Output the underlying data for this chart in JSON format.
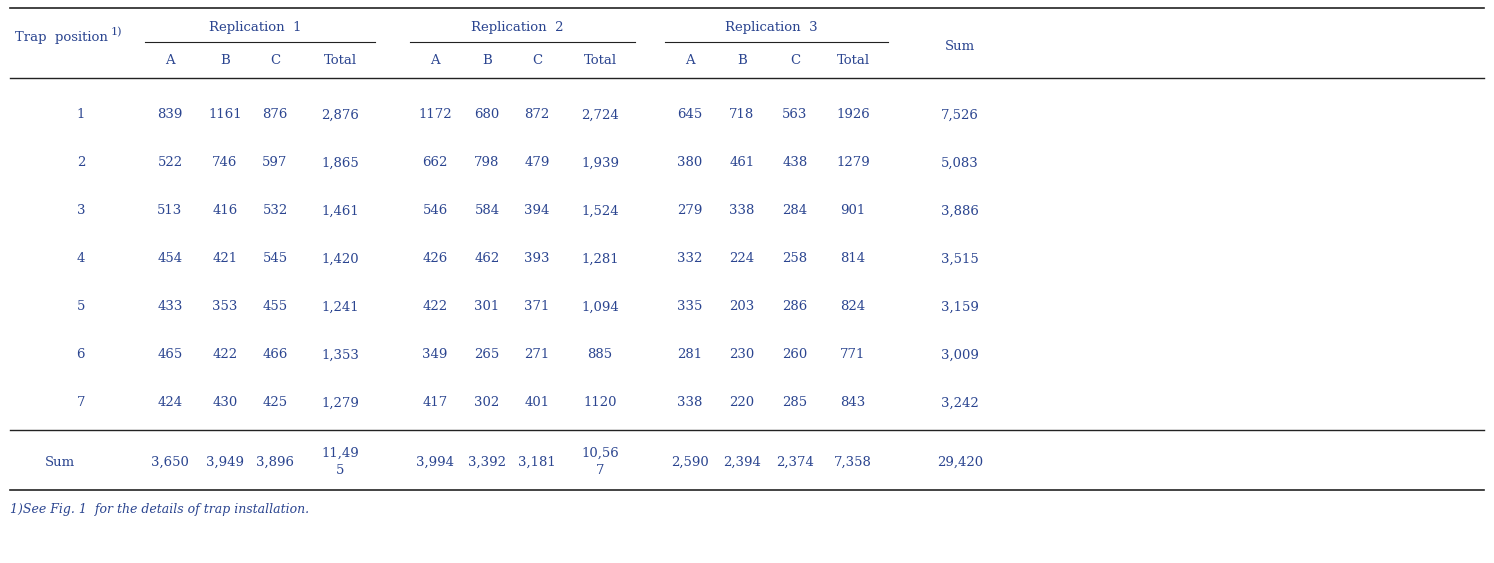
{
  "rows": [
    [
      "1",
      "839",
      "1161",
      "876",
      "2,876",
      "1172",
      "680",
      "872",
      "2,724",
      "645",
      "718",
      "563",
      "1926",
      "7,526"
    ],
    [
      "2",
      "522",
      "746",
      "597",
      "1,865",
      "662",
      "798",
      "479",
      "1,939",
      "380",
      "461",
      "438",
      "1279",
      "5,083"
    ],
    [
      "3",
      "513",
      "416",
      "532",
      "1,461",
      "546",
      "584",
      "394",
      "1,524",
      "279",
      "338",
      "284",
      "901",
      "3,886"
    ],
    [
      "4",
      "454",
      "421",
      "545",
      "1,420",
      "426",
      "462",
      "393",
      "1,281",
      "332",
      "224",
      "258",
      "814",
      "3,515"
    ],
    [
      "5",
      "433",
      "353",
      "455",
      "1,241",
      "422",
      "301",
      "371",
      "1,094",
      "335",
      "203",
      "286",
      "824",
      "3,159"
    ],
    [
      "6",
      "465",
      "422",
      "466",
      "1,353",
      "349",
      "265",
      "271",
      "885",
      "281",
      "230",
      "260",
      "771",
      "3,009"
    ],
    [
      "7",
      "424",
      "430",
      "425",
      "1,279",
      "417",
      "302",
      "401",
      "1120",
      "338",
      "220",
      "285",
      "843",
      "3,242"
    ]
  ],
  "sum_row": [
    "Sum",
    "3,650",
    "3,949",
    "3,896",
    "11,495",
    "3,994",
    "3,392",
    "3,181",
    "10,567",
    "2,590",
    "2,394",
    "2,374",
    "7,358",
    "29,420"
  ],
  "footnote": "1)See Fig. 1  for the details of trap installation.",
  "text_color": "#2B4590",
  "line_color": "#222222",
  "font_size": 9.5
}
